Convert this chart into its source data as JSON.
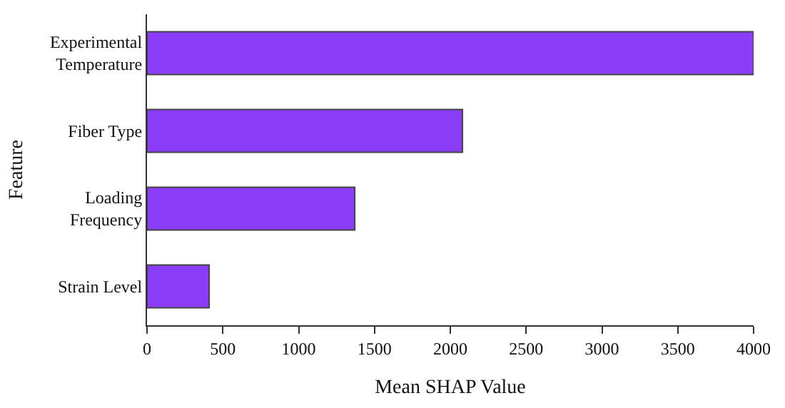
{
  "chart_data": {
    "type": "bar",
    "orientation": "horizontal",
    "xlabel": "Mean SHAP Value",
    "ylabel": "Feature",
    "categories": [
      "Experimental Temperature",
      "Fiber Type",
      "Loading Frequency",
      "Strain Level"
    ],
    "values": [
      4000,
      2080,
      1370,
      410
    ],
    "color": "#8a3cf6",
    "xlim": [
      0,
      4000
    ],
    "xticks": [
      0,
      500,
      1000,
      1500,
      2000,
      2500,
      3000,
      3500,
      4000
    ]
  }
}
